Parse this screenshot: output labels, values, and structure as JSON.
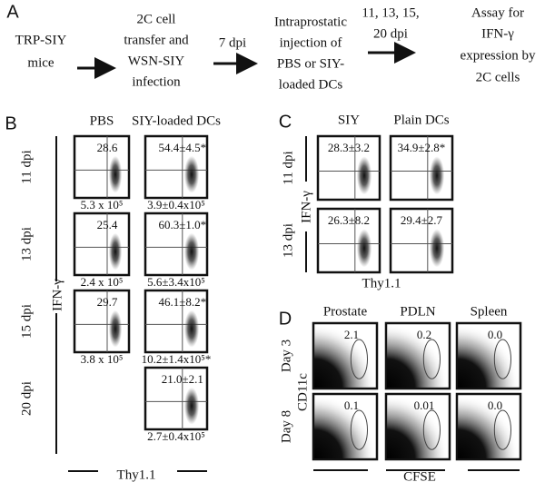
{
  "panel_a": {
    "label": "A",
    "steps": [
      [
        "TRP-SIY",
        "mice"
      ],
      [
        "2C cell",
        "transfer and",
        "WSN-SIY",
        "infection"
      ],
      [
        "Intraprostatic",
        "injection of",
        "PBS or SIY-",
        "loaded DCs"
      ],
      [
        "Assay for",
        "IFN-γ",
        "expression by",
        "2C cells"
      ]
    ],
    "arrow_labels": [
      [
        "7 dpi"
      ],
      [
        "11, 13, 15,",
        "20 dpi"
      ]
    ]
  },
  "panel_b": {
    "label": "B",
    "columns": [
      "PBS",
      "SIY-loaded DCs"
    ],
    "rows": [
      "11 dpi",
      "13 dpi",
      "15 dpi",
      "20 dpi"
    ],
    "y_axis": "IFN-γ",
    "x_axis": "Thy1.1",
    "percents": [
      [
        "28.6",
        "54.4±4.5*"
      ],
      [
        "25.4",
        "60.3±1.0*"
      ],
      [
        "29.7",
        "46.1±8.2*"
      ],
      [
        null,
        "21.0±2.1"
      ]
    ],
    "counts": [
      [
        "5.3 x 10⁵",
        "3.9±0.4x10⁵"
      ],
      [
        "2.4 x 10⁵",
        "5.6±3.4x10⁵"
      ],
      [
        "3.8 x 10⁵",
        "10.2±1.4x10⁵*"
      ],
      [
        null,
        "2.7±0.4x10⁵"
      ]
    ]
  },
  "panel_c": {
    "label": "C",
    "columns": [
      "SIY",
      "Plain DCs"
    ],
    "rows": [
      "11 dpi",
      "13 dpi"
    ],
    "y_axis": "IFN-γ",
    "x_axis": "Thy1.1",
    "percents": [
      [
        "28.3±3.2",
        "34.9±2.8*"
      ],
      [
        "26.3±8.2",
        "29.4±2.7"
      ]
    ]
  },
  "panel_d": {
    "label": "D",
    "columns": [
      "Prostate",
      "PDLN",
      "Spleen"
    ],
    "rows": [
      "Day 3",
      "Day 8"
    ],
    "y_axis": "CD11c",
    "x_axis": "CFSE",
    "percents": [
      [
        "2.1",
        "0.2",
        "0.0"
      ],
      [
        "0.1",
        "0.01",
        "0.0"
      ]
    ]
  }
}
